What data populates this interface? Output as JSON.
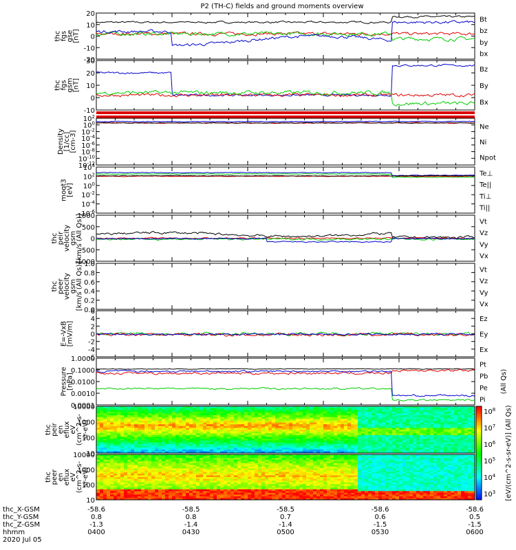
{
  "title": "P2 (TH-C) fields and ground moments overview",
  "colors": {
    "black": "#000000",
    "red": "#dd0000",
    "green": "#00cc00",
    "blue": "#0000cc"
  },
  "panels": [
    {
      "id": "fgs",
      "ylabel": [
        "thc",
        "fgs",
        "gse",
        "[nT]"
      ],
      "ticks": [
        "20",
        "10",
        "0",
        "-10",
        "-20"
      ],
      "legend": [
        {
          "text": "Bt",
          "color": "black"
        },
        {
          "text": "bz",
          "color": "red"
        },
        {
          "text": "by",
          "color": "green"
        },
        {
          "text": "bx",
          "color": "blue"
        }
      ]
    },
    {
      "id": "fgs_gsm",
      "ylabel": [
        "thc",
        "fgs",
        "gsm",
        "[nT]"
      ],
      "ticks": [
        "30",
        "20",
        "10",
        "0",
        "-10"
      ],
      "legend": [
        {
          "text": "Bz",
          "color": "red"
        },
        {
          "text": "By",
          "color": "green"
        },
        {
          "text": "Bx",
          "color": "blue"
        }
      ]
    },
    {
      "id": "density",
      "ylabel": [
        "Density",
        "[1/cc]",
        "[cm-3]"
      ],
      "ticks": [
        "10^2",
        "10^0",
        "10^-2",
        "10^-4",
        "10^-6",
        "10^-8",
        "10^-10",
        "10^-12"
      ],
      "legend": [
        {
          "text": "Ne",
          "color": "red"
        },
        {
          "text": "Ni",
          "color": "black"
        },
        {
          "text": "Npot",
          "color": "blue"
        }
      ]
    },
    {
      "id": "temp",
      "ylabel": [
        "moqt3",
        "[eV]"
      ],
      "ticks": [
        "10^4",
        "10^2",
        "10^0",
        "10^-2",
        "10^-4",
        "10^-6"
      ],
      "legend": [
        {
          "text": "Te⊥",
          "color": "red"
        },
        {
          "text": "Te||",
          "color": "black"
        },
        {
          "text": "Ti⊥",
          "color": "blue"
        },
        {
          "text": "Ti||",
          "color": "green"
        }
      ]
    },
    {
      "id": "peir_vel",
      "ylabel": [
        "thc",
        "peir",
        "velocity",
        "gsm",
        "[km/s (All Qs)]"
      ],
      "ticks": [
        "1000",
        "500",
        "0",
        "-500",
        "-1000"
      ],
      "legend": [
        {
          "text": "Vt",
          "color": "black"
        },
        {
          "text": "Vz",
          "color": "red"
        },
        {
          "text": "Vy",
          "color": "green"
        },
        {
          "text": "Vx",
          "color": "blue"
        }
      ]
    },
    {
      "id": "peer_vel",
      "ylabel": [
        "thc",
        "peer",
        "velocity",
        "gsm",
        "[km/s (All Qs)]"
      ],
      "ticks": [
        "1.0",
        "0.8",
        "0.6",
        "0.4",
        "0.2",
        "0.0"
      ],
      "legend": [
        {
          "text": "Vt",
          "color": "black"
        },
        {
          "text": "Vz",
          "color": "red"
        },
        {
          "text": "Vy",
          "color": "green"
        },
        {
          "text": "Vx",
          "color": "blue"
        }
      ]
    },
    {
      "id": "efield",
      "ylabel": [
        "E=-VxB",
        "[mV/m]"
      ],
      "ticks": [
        "6",
        "4",
        "2",
        "0",
        "-2",
        "-4",
        "-6"
      ],
      "legend": [
        {
          "text": "Ez",
          "color": "red"
        },
        {
          "text": "Ey",
          "color": "green"
        },
        {
          "text": "Ex",
          "color": "blue"
        }
      ]
    },
    {
      "id": "pressure",
      "ylabel": [
        "Pressure",
        "[nPa]"
      ],
      "ticks": [
        "1.0000",
        "0.1000",
        "0.0100",
        "0.0010",
        "0.0001"
      ],
      "legend": [
        {
          "text": "Pt",
          "color": "black"
        },
        {
          "text": "Pb",
          "color": "red"
        },
        {
          "text": "Pe",
          "color": "green"
        },
        {
          "text": "Pi",
          "color": "blue"
        }
      ],
      "side_label": "(All Qs)"
    },
    {
      "id": "peir_spec",
      "ylabel": [
        "thc",
        "peir",
        "en",
        "eflux",
        "eV",
        "(cm^2-s-",
        "sr-eV)"
      ],
      "ticks": [
        "10000",
        "1000",
        "100",
        "10"
      ]
    },
    {
      "id": "peer_spec",
      "ylabel": [
        "thc",
        "peer",
        "en",
        "eflux",
        "eV",
        "(cm^2-s-",
        "sr-eV)"
      ],
      "ticks": [
        "10000",
        "1000",
        "100",
        "10"
      ]
    }
  ],
  "colorbar": {
    "ticks": [
      "10^8",
      "10^7",
      "10^6",
      "10^5",
      "10^4",
      "10^3"
    ],
    "label": "[eV/(cm^2-s-sr-eV)] (All Qs)"
  },
  "xaxis": {
    "rows": [
      {
        "name": "thc_X-GSM",
        "values": [
          "-58.6",
          "-58.5",
          "-58.5",
          "-58.6",
          "-58.6"
        ]
      },
      {
        "name": "thc_Y-GSM",
        "values": [
          "0.8",
          "0.8",
          "0.7",
          "0.6",
          "0.5"
        ]
      },
      {
        "name": "thc_Z-GSM",
        "values": [
          "-1.3",
          "-1.4",
          "-1.4",
          "-1.5",
          "-1.5"
        ]
      },
      {
        "name": "hhmm",
        "values": [
          "0400",
          "0430",
          "0500",
          "0530",
          "0600"
        ]
      }
    ],
    "date": "2020 Jul 05"
  },
  "chart_data": [
    {
      "type": "line",
      "title": "P2 (TH-C) fields and ground moments overview",
      "ylabel": "thc fgs gse [nT]",
      "ylim": [
        -20,
        20
      ],
      "x": [
        "0400",
        "0430",
        "0500",
        "0530",
        "0600"
      ],
      "series": [
        {
          "name": "Bt",
          "values": [
            10,
            9,
            8,
            13,
            15
          ]
        },
        {
          "name": "bz",
          "values": [
            2,
            0,
            1,
            2,
            1
          ]
        },
        {
          "name": "by",
          "values": [
            3,
            1,
            0,
            -4,
            -5
          ]
        },
        {
          "name": "bx",
          "values": [
            6,
            -5,
            -8,
            9,
            12
          ]
        }
      ]
    },
    {
      "type": "line",
      "ylabel": "thc fgs gsm [nT]",
      "ylim": [
        -15,
        30
      ],
      "x": [
        "0400",
        "0430",
        "0500",
        "0530",
        "0600"
      ],
      "series": [
        {
          "name": "Bz",
          "values": [
            2,
            0,
            1,
            8,
            6
          ]
        },
        {
          "name": "By",
          "values": [
            3,
            4,
            5,
            -8,
            -8
          ]
        },
        {
          "name": "Bx",
          "values": [
            16,
            3,
            -3,
            20,
            18
          ]
        }
      ]
    },
    {
      "type": "line",
      "ylabel": "Density [1/cc] [cm-3]",
      "yscale": "log",
      "x": [
        "0400",
        "0430",
        "0500",
        "0530",
        "0600"
      ],
      "series": [
        {
          "name": "Ne",
          "values": [
            10,
            10,
            10,
            30,
            30
          ]
        },
        {
          "name": "Ni",
          "values": [
            10,
            10,
            10,
            30,
            30
          ]
        },
        {
          "name": "Npot",
          "values": [
            15,
            15,
            15,
            40,
            40
          ]
        }
      ]
    },
    {
      "type": "line",
      "ylabel": "moqt3 [eV]",
      "yscale": "log",
      "x": [
        "0400",
        "0430",
        "0500",
        "0530",
        "0600"
      ],
      "series": [
        {
          "name": "Te⊥",
          "values": [
            500,
            500,
            500,
            100,
            100
          ]
        },
        {
          "name": "Te||",
          "values": [
            600,
            600,
            600,
            150,
            150
          ]
        },
        {
          "name": "Ti⊥",
          "values": [
            2000,
            2000,
            3000,
            300,
            300
          ]
        },
        {
          "name": "Ti||",
          "values": [
            2000,
            2000,
            3000,
            300,
            300
          ]
        }
      ]
    },
    {
      "type": "line",
      "ylabel": "thc peir velocity gsm [km/s (All Qs)]",
      "ylim": [
        -1000,
        1000
      ],
      "x": [
        "0400",
        "0430",
        "0500",
        "0530",
        "0600"
      ],
      "series": [
        {
          "name": "Vt",
          "values": [
            100,
            150,
            300,
            50,
            20
          ]
        },
        {
          "name": "Vz",
          "values": [
            0,
            0,
            0,
            0,
            0
          ]
        },
        {
          "name": "Vy",
          "values": [
            -20,
            -40,
            -50,
            0,
            0
          ]
        },
        {
          "name": "Vx",
          "values": [
            -30,
            -50,
            -300,
            0,
            0
          ]
        }
      ]
    },
    {
      "type": "line",
      "ylabel": "thc peer velocity gsm [km/s (All Qs)]",
      "ylim": [
        0,
        1
      ],
      "x": [
        "0400",
        "0430",
        "0500",
        "0530",
        "0600"
      ],
      "series": []
    },
    {
      "type": "line",
      "ylabel": "E=-VxB [mV/m]",
      "ylim": [
        -6,
        6
      ],
      "x": [
        "0400",
        "0430",
        "0500",
        "0530",
        "0600"
      ],
      "series": [
        {
          "name": "Ez",
          "values": [
            0,
            -0.5,
            0,
            0,
            0
          ]
        },
        {
          "name": "Ey",
          "values": [
            -0.5,
            -0.3,
            0,
            0,
            0
          ]
        },
        {
          "name": "Ex",
          "values": [
            -0.3,
            -0.2,
            0,
            0,
            0
          ]
        }
      ]
    },
    {
      "type": "line",
      "ylabel": "Pressure [nPa]",
      "yscale": "log",
      "ylim": [
        0.0001,
        1
      ],
      "x": [
        "0400",
        "0430",
        "0500",
        "0530",
        "0600"
      ],
      "series": [
        {
          "name": "Pt",
          "values": [
            0.09,
            0.08,
            0.1,
            0.1,
            0.1
          ]
        },
        {
          "name": "Pb",
          "values": [
            0.05,
            0.02,
            0.04,
            0.09,
            0.08
          ]
        },
        {
          "name": "Pe",
          "values": [
            0.003,
            0.002,
            0.002,
            0.0006,
            0.0005
          ]
        },
        {
          "name": "Pi",
          "values": [
            0.08,
            0.06,
            0.08,
            0.003,
            0.002
          ]
        }
      ]
    },
    {
      "type": "heatmap",
      "ylabel": "thc peir en eflux eV (cm^2-s- sr-eV)",
      "yscale": "log",
      "ylim": [
        5,
        20000
      ],
      "x": [
        "0400",
        "0430",
        "0500",
        "0530",
        "0600"
      ]
    },
    {
      "type": "heatmap",
      "ylabel": "thc peer en eflux eV (cm^2-s- sr-eV)",
      "yscale": "log",
      "ylim": [
        5,
        20000
      ],
      "x": [
        "0400",
        "0430",
        "0500",
        "0530",
        "0600"
      ]
    }
  ]
}
